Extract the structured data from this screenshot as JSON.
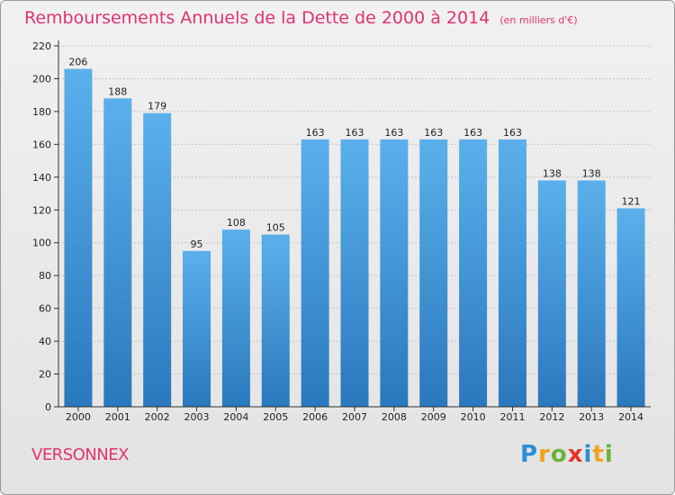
{
  "title": "Remboursements Annuels de la Dette de 2000 à 2014",
  "unit_note": "(en milliers d'€)",
  "commune": "VERSONNEX",
  "brand": {
    "letters": [
      "P",
      "r",
      "o",
      "x",
      "i",
      "t",
      "i"
    ],
    "colors": [
      "#2a8fd6",
      "#f0a31c",
      "#6cb23a",
      "#e8332a",
      "#2a8fd6",
      "#f0a31c",
      "#6cb23a"
    ]
  },
  "colors": {
    "accent": "#e0336f",
    "bar_top": "#5bb0ec",
    "bar_bottom": "#2a78bd",
    "grid": "#c4c4c4",
    "axis": "#333333"
  },
  "chart_data": {
    "type": "bar",
    "title": "Remboursements Annuels de la Dette de 2000 à 2014",
    "xlabel": "",
    "ylabel": "",
    "categories": [
      "2000",
      "2001",
      "2002",
      "2003",
      "2004",
      "2005",
      "2006",
      "2007",
      "2008",
      "2009",
      "2010",
      "2011",
      "2012",
      "2013",
      "2014"
    ],
    "values": [
      206,
      188,
      179,
      95,
      108,
      105,
      163,
      163,
      163,
      163,
      163,
      163,
      138,
      138,
      121
    ],
    "ylim": [
      0,
      220
    ],
    "yticks": [
      0,
      20,
      40,
      60,
      80,
      100,
      120,
      140,
      160,
      180,
      200,
      220
    ],
    "grid": true,
    "data_labels": true
  }
}
